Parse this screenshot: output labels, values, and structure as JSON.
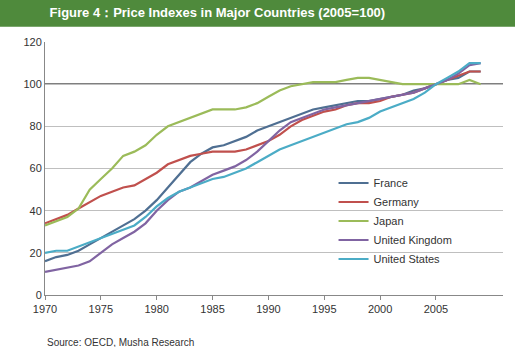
{
  "chart_data": {
    "type": "line",
    "title": "Figure 4：Price Indexes in Major Countries (2005=100)",
    "source": "Source: OECD, Musha Research",
    "x": [
      1970,
      1971,
      1972,
      1973,
      1974,
      1975,
      1976,
      1977,
      1978,
      1979,
      1980,
      1981,
      1982,
      1983,
      1984,
      1985,
      1986,
      1987,
      1988,
      1989,
      1990,
      1991,
      1992,
      1993,
      1994,
      1995,
      1996,
      1997,
      1998,
      1999,
      2000,
      2001,
      2002,
      2003,
      2004,
      2005,
      2006,
      2007,
      2008,
      2009
    ],
    "series": [
      {
        "name": "France",
        "color": "#4f6f92",
        "values": [
          16,
          18,
          19,
          21,
          24,
          27,
          30,
          33,
          36,
          40,
          45,
          51,
          57,
          63,
          67,
          70,
          71,
          73,
          75,
          78,
          80,
          82,
          84,
          86,
          88,
          89,
          90,
          91,
          92,
          92,
          93,
          94,
          95,
          97,
          98,
          100,
          102,
          103,
          106,
          106
        ]
      },
      {
        "name": "Germany",
        "color": "#c0504d",
        "values": [
          34,
          36,
          38,
          41,
          44,
          47,
          49,
          51,
          52,
          55,
          58,
          62,
          64,
          66,
          67,
          68,
          68,
          68,
          69,
          71,
          73,
          76,
          80,
          83,
          85,
          87,
          88,
          90,
          91,
          91,
          92,
          94,
          95,
          96,
          98,
          100,
          102,
          104,
          106,
          106
        ]
      },
      {
        "name": "Japan",
        "color": "#9bbb59",
        "values": [
          33,
          35,
          37,
          41,
          50,
          55,
          60,
          66,
          68,
          71,
          76,
          80,
          82,
          84,
          86,
          88,
          88,
          88,
          89,
          91,
          94,
          97,
          99,
          100,
          101,
          101,
          101,
          102,
          103,
          103,
          102,
          101,
          100,
          100,
          100,
          100,
          100,
          100,
          102,
          100
        ]
      },
      {
        "name": "United Kingdom",
        "color": "#8064a2",
        "values": [
          11,
          12,
          13,
          14,
          16,
          20,
          24,
          27,
          30,
          34,
          40,
          45,
          49,
          51,
          54,
          57,
          59,
          61,
          64,
          68,
          73,
          78,
          82,
          84,
          86,
          88,
          89,
          90,
          91,
          92,
          93,
          94,
          95,
          96,
          98,
          100,
          102,
          105,
          109,
          110
        ]
      },
      {
        "name": "United States",
        "color": "#4bacc6",
        "values": [
          20,
          21,
          21,
          23,
          25,
          27,
          29,
          31,
          33,
          37,
          42,
          46,
          49,
          51,
          53,
          55,
          56,
          58,
          60,
          63,
          66,
          69,
          71,
          73,
          75,
          77,
          79,
          81,
          82,
          84,
          87,
          89,
          91,
          93,
          96,
          100,
          103,
          106,
          110,
          110
        ]
      }
    ],
    "reference_line": 100,
    "xlim": [
      1970,
      2011
    ],
    "xticks": [
      1970,
      1975,
      1980,
      1985,
      1990,
      1995,
      2000,
      2005
    ],
    "ylim": [
      0,
      120
    ],
    "yticks": [
      0,
      20,
      40,
      60,
      80,
      100,
      120
    ],
    "grid": true,
    "legend": "lower right"
  }
}
